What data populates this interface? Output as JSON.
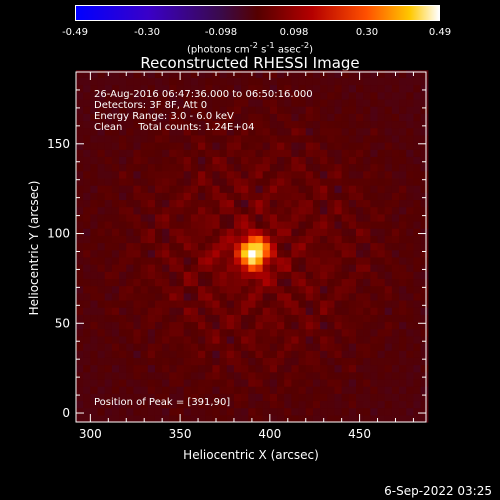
{
  "chart_data": {
    "type": "heatmap",
    "title": "Reconstructed RHESSI Image",
    "xlabel": "Heliocentric X (arcsec)",
    "ylabel": "Heliocentric Y (arcsec)",
    "xlim": [
      292,
      487
    ],
    "ylim": [
      -5,
      190
    ],
    "xticks": [
      300,
      350,
      400,
      450
    ],
    "yticks": [
      0,
      50,
      100,
      150
    ],
    "colorbar": {
      "min": -0.49,
      "max": 0.49,
      "ticks": [
        "-0.49",
        "-0.30",
        "-0.098",
        "0.098",
        "0.30",
        "0.49"
      ],
      "units_text": "(photons cm",
      "units_exp1": "-2",
      "units_mid": " s",
      "units_exp2": "-1",
      "units_mid2": " asec",
      "units_exp3": "-2",
      "units_end": ")"
    },
    "peak": {
      "x": 391,
      "y": 90,
      "value": 0.49
    },
    "annotations": [
      "26-Aug-2016 06:47:36.000 to 06:50:16.000",
      "Detectors: 3F 8F, Att 0",
      "Energy Range: 3.0 - 6.0 keV",
      "Clean     Total counts: 1.24E+04"
    ],
    "peak_label": "Position of Peak = [391,90]"
  },
  "timestamp": "6-Sep-2022 03:25"
}
